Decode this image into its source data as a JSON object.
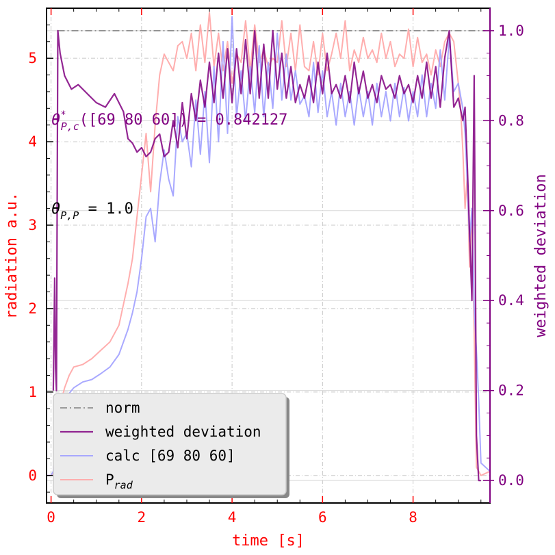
{
  "chart_data": {
    "type": "line",
    "title": "",
    "xlabel": "time [s]",
    "ylabel_left": "radiation a.u.",
    "ylabel_right": "weighted deviation",
    "xlim": [
      -0.1,
      9.7
    ],
    "ylim_left": [
      -0.33,
      5.6
    ],
    "ylim_right": [
      -0.05,
      1.05
    ],
    "x_ticks": [
      0,
      2,
      4,
      6,
      8
    ],
    "y_ticks_left": [
      0,
      1,
      2,
      3,
      4,
      5
    ],
    "y_ticks_right": [
      0.0,
      0.2,
      0.4,
      0.6,
      0.8,
      1.0
    ],
    "y_tick_labels_right": [
      "0.0",
      "0.2",
      "0.4",
      "0.6",
      "0.8",
      "1.0"
    ],
    "grid": true,
    "legend_position": "bottom-left",
    "annotations": [
      {
        "id": "theta-pc",
        "var": "θ",
        "sup": "*",
        "sub": "P,c",
        "text": "([69 80 60]) = 0.842127",
        "color": "#800080"
      },
      {
        "id": "theta-pp",
        "var": "θ",
        "sub": "P,P",
        "text": " = 1.0",
        "color": "#000000"
      }
    ],
    "colors": {
      "left_axis": "#ff0000",
      "right_axis": "#800080",
      "norm": "#808080",
      "weighted": "#800080",
      "calc": "#a0a0ff",
      "prad": "#ffaaaa"
    },
    "series": [
      {
        "name": "norm",
        "axis": "right",
        "style": "dashdot",
        "x": [
          0.15,
          9.6
        ],
        "y": [
          1.0,
          1.0
        ]
      },
      {
        "name": "weighted deviation",
        "axis": "right",
        "style": "solid",
        "x": [
          0.05,
          0.08,
          0.1,
          0.12,
          0.15,
          0.2,
          0.3,
          0.45,
          0.6,
          0.8,
          1.0,
          1.2,
          1.4,
          1.6,
          1.7,
          1.8,
          1.9,
          2.0,
          2.1,
          2.2,
          2.3,
          2.4,
          2.5,
          2.6,
          2.7,
          2.8,
          2.9,
          3.0,
          3.1,
          3.2,
          3.3,
          3.4,
          3.5,
          3.6,
          3.7,
          3.8,
          3.9,
          4.0,
          4.1,
          4.2,
          4.3,
          4.4,
          4.5,
          4.6,
          4.7,
          4.8,
          4.9,
          5.0,
          5.1,
          5.2,
          5.3,
          5.4,
          5.5,
          5.6,
          5.7,
          5.8,
          5.9,
          6.0,
          6.1,
          6.2,
          6.3,
          6.4,
          6.5,
          6.6,
          6.7,
          6.8,
          6.9,
          7.0,
          7.1,
          7.2,
          7.3,
          7.4,
          7.5,
          7.6,
          7.7,
          7.8,
          7.9,
          8.0,
          8.1,
          8.2,
          8.3,
          8.4,
          8.5,
          8.6,
          8.7,
          8.8,
          8.9,
          9.0,
          9.1,
          9.15,
          9.2,
          9.25,
          9.3,
          9.35,
          9.4,
          9.45,
          9.5
        ],
        "y": [
          0.2,
          0.45,
          0.25,
          0.2,
          1.0,
          0.95,
          0.9,
          0.87,
          0.88,
          0.86,
          0.84,
          0.83,
          0.86,
          0.82,
          0.76,
          0.75,
          0.73,
          0.74,
          0.72,
          0.73,
          0.76,
          0.77,
          0.72,
          0.73,
          0.8,
          0.74,
          0.84,
          0.76,
          0.86,
          0.8,
          0.89,
          0.83,
          0.93,
          0.84,
          0.95,
          0.85,
          0.96,
          0.84,
          0.96,
          0.86,
          0.98,
          0.86,
          1.0,
          0.85,
          0.97,
          0.85,
          1.0,
          0.87,
          0.95,
          0.85,
          0.92,
          0.84,
          0.88,
          0.85,
          0.9,
          0.84,
          0.93,
          0.86,
          0.95,
          0.86,
          0.88,
          0.85,
          0.9,
          0.84,
          0.93,
          0.86,
          0.91,
          0.85,
          0.88,
          0.84,
          0.9,
          0.87,
          0.88,
          0.85,
          0.9,
          0.86,
          0.88,
          0.84,
          0.9,
          0.85,
          0.93,
          0.85,
          0.92,
          0.83,
          0.94,
          1.0,
          0.83,
          0.85,
          0.8,
          0.83,
          0.7,
          0.55,
          0.4,
          0.9,
          0.1,
          0.0,
          0.0
        ]
      },
      {
        "name": "calc [69 80 60]",
        "axis": "left",
        "style": "solid",
        "x": [
          -0.1,
          0.0,
          0.05,
          0.1,
          0.2,
          0.35,
          0.5,
          0.7,
          0.9,
          1.1,
          1.3,
          1.5,
          1.6,
          1.7,
          1.8,
          1.9,
          2.0,
          2.1,
          2.2,
          2.3,
          2.4,
          2.5,
          2.6,
          2.7,
          2.8,
          2.9,
          3.0,
          3.1,
          3.2,
          3.3,
          3.4,
          3.5,
          3.6,
          3.7,
          3.8,
          3.9,
          4.0,
          4.1,
          4.2,
          4.3,
          4.4,
          4.5,
          4.6,
          4.7,
          4.8,
          4.9,
          5.0,
          5.1,
          5.2,
          5.3,
          5.4,
          5.5,
          5.6,
          5.7,
          5.8,
          5.9,
          6.0,
          6.1,
          6.2,
          6.3,
          6.4,
          6.5,
          6.6,
          6.7,
          6.8,
          6.9,
          7.0,
          7.1,
          7.2,
          7.3,
          7.4,
          7.5,
          7.6,
          7.7,
          7.8,
          7.9,
          8.0,
          8.1,
          8.2,
          8.3,
          8.4,
          8.5,
          8.6,
          8.7,
          8.8,
          8.9,
          9.0,
          9.1,
          9.15,
          9.2,
          9.25,
          9.3,
          9.35,
          9.4,
          9.45,
          9.5,
          9.6,
          9.7
        ],
        "y": [
          0.0,
          0.0,
          0.05,
          0.5,
          0.8,
          0.95,
          1.05,
          1.12,
          1.15,
          1.22,
          1.3,
          1.45,
          1.6,
          1.75,
          1.95,
          2.2,
          2.6,
          3.1,
          3.2,
          2.8,
          3.5,
          3.9,
          3.55,
          3.35,
          4.3,
          4.0,
          4.1,
          3.7,
          4.5,
          3.85,
          4.6,
          3.75,
          4.9,
          4.0,
          5.2,
          4.1,
          5.5,
          4.3,
          4.85,
          4.25,
          4.9,
          4.35,
          5.15,
          4.3,
          4.95,
          4.4,
          5.3,
          4.5,
          5.05,
          4.5,
          4.85,
          4.45,
          4.55,
          4.3,
          4.95,
          4.35,
          4.85,
          4.3,
          4.6,
          4.2,
          4.7,
          4.3,
          4.6,
          4.2,
          4.65,
          4.3,
          4.6,
          4.2,
          4.7,
          4.3,
          4.6,
          4.25,
          4.7,
          4.3,
          4.65,
          4.25,
          4.6,
          4.3,
          4.8,
          4.3,
          4.7,
          4.4,
          5.1,
          4.5,
          5.25,
          4.6,
          4.7,
          4.4,
          4.1,
          3.5,
          2.8,
          3.2,
          2.0,
          1.5,
          0.9,
          0.15,
          0.1,
          0.05
        ]
      },
      {
        "name": "P_rad",
        "axis": "left",
        "style": "solid",
        "x": [
          -0.1,
          0.0,
          0.05,
          0.1,
          0.2,
          0.3,
          0.4,
          0.5,
          0.7,
          0.9,
          1.1,
          1.3,
          1.5,
          1.6,
          1.7,
          1.8,
          1.9,
          2.0,
          2.1,
          2.2,
          2.3,
          2.4,
          2.5,
          2.6,
          2.7,
          2.8,
          2.9,
          3.0,
          3.1,
          3.2,
          3.3,
          3.4,
          3.5,
          3.6,
          3.7,
          3.8,
          3.9,
          4.0,
          4.1,
          4.2,
          4.3,
          4.4,
          4.5,
          4.6,
          4.7,
          4.8,
          4.9,
          5.0,
          5.1,
          5.2,
          5.3,
          5.4,
          5.5,
          5.6,
          5.7,
          5.8,
          5.9,
          6.0,
          6.1,
          6.2,
          6.3,
          6.4,
          6.5,
          6.6,
          6.7,
          6.8,
          6.9,
          7.0,
          7.1,
          7.2,
          7.3,
          7.4,
          7.5,
          7.6,
          7.7,
          7.8,
          7.9,
          8.0,
          8.1,
          8.2,
          8.3,
          8.4,
          8.5,
          8.6,
          8.7,
          8.8,
          8.9,
          9.0,
          9.05,
          9.1,
          9.15,
          9.2,
          9.25,
          9.3,
          9.35,
          9.4,
          9.5,
          9.7
        ],
        "y": [
          0.0,
          0.0,
          0.02,
          0.6,
          0.85,
          1.05,
          1.2,
          1.3,
          1.33,
          1.4,
          1.5,
          1.6,
          1.8,
          2.05,
          2.3,
          2.6,
          3.1,
          3.6,
          4.1,
          3.4,
          4.2,
          4.8,
          5.05,
          4.95,
          4.85,
          5.15,
          5.2,
          5.0,
          5.3,
          4.85,
          5.4,
          4.95,
          5.55,
          4.9,
          5.3,
          4.85,
          5.2,
          4.7,
          5.05,
          4.95,
          5.45,
          4.85,
          5.4,
          4.95,
          5.1,
          4.9,
          5.0,
          4.95,
          5.45,
          4.9,
          5.3,
          4.85,
          5.4,
          4.9,
          4.85,
          5.2,
          4.8,
          5.3,
          4.85,
          5.05,
          5.3,
          5.0,
          5.45,
          4.85,
          5.1,
          4.95,
          5.25,
          5.0,
          5.1,
          4.95,
          5.3,
          5.0,
          5.2,
          4.9,
          5.05,
          5.0,
          5.35,
          4.9,
          5.25,
          4.95,
          5.05,
          4.8,
          5.1,
          4.9,
          5.2,
          5.3,
          5.2,
          4.7,
          4.4,
          3.9,
          3.2,
          3.6,
          2.5,
          3.2,
          1.7,
          0.1,
          0.0,
          0.05
        ]
      }
    ]
  }
}
